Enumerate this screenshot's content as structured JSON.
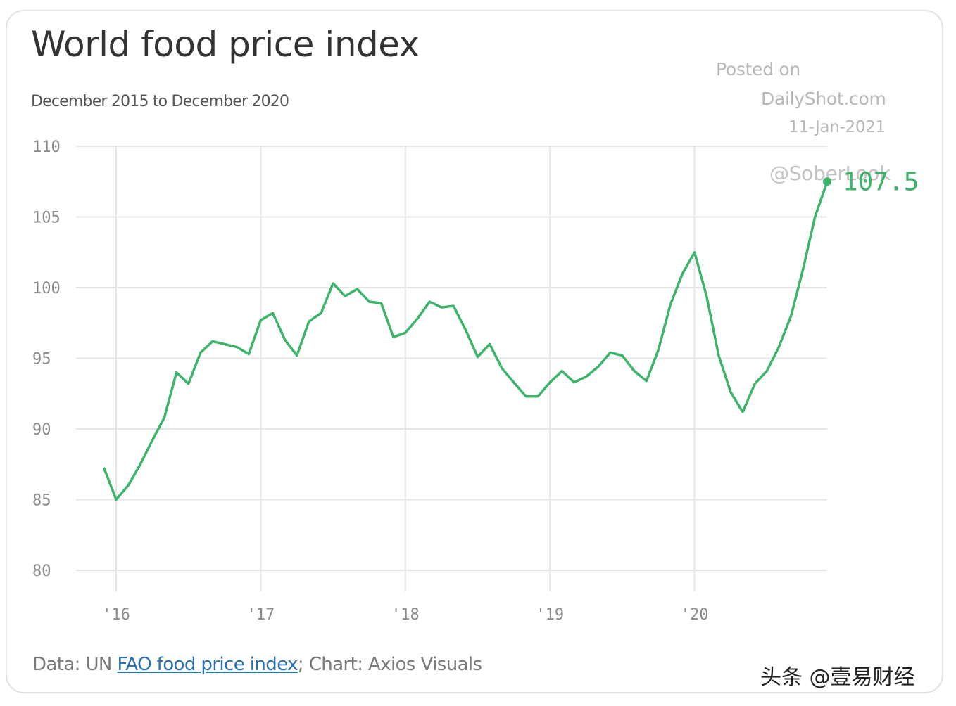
{
  "header": {
    "title": "World food price index",
    "subtitle": "December 2015 to December 2020"
  },
  "watermark": {
    "line1": "Posted on",
    "line2": "DailyShot.com",
    "line3": "11-Jan-2021",
    "line4": "@SoberLook"
  },
  "footer": {
    "prefix": "Data: UN ",
    "link_text": "FAO food price index",
    "suffix": "; Chart: Axios Visuals"
  },
  "brand": "头条 @壹易财经",
  "colors": {
    "line": "#3cb46a",
    "grid": "#e6e6e6",
    "text": "#333333"
  },
  "chart_data": {
    "type": "line",
    "title": "World food price index",
    "subtitle": "December 2015 to December 2020",
    "ylim": [
      80,
      110
    ],
    "yticks": [
      80,
      85,
      90,
      95,
      100,
      105,
      110
    ],
    "xticks": [
      {
        "label": "'16",
        "x": 2016.0
      },
      {
        "label": "'17",
        "x": 2017.0
      },
      {
        "label": "'18",
        "x": 2018.0
      },
      {
        "label": "'19",
        "x": 2019.0
      },
      {
        "label": "'20",
        "x": 2020.0
      }
    ],
    "xlim": [
      2015.917,
      2020.917
    ],
    "grid": true,
    "end_label": "107.5",
    "series": [
      {
        "x": [
          2015.917,
          2016.0,
          2016.083,
          2016.167,
          2016.25,
          2016.333,
          2016.417,
          2016.5,
          2016.583,
          2016.667,
          2016.75,
          2016.833,
          2016.917,
          2017.0,
          2017.083,
          2017.167,
          2017.25,
          2017.333,
          2017.417,
          2017.5,
          2017.583,
          2017.667,
          2017.75,
          2017.833,
          2017.917,
          2018.0,
          2018.083,
          2018.167,
          2018.25,
          2018.333,
          2018.417,
          2018.5,
          2018.583,
          2018.667,
          2018.75,
          2018.833,
          2018.917,
          2019.0,
          2019.083,
          2019.167,
          2019.25,
          2019.333,
          2019.417,
          2019.5,
          2019.583,
          2019.667,
          2019.75,
          2019.833,
          2019.917,
          2020.0,
          2020.083,
          2020.167,
          2020.25,
          2020.333,
          2020.417,
          2020.5,
          2020.583,
          2020.667,
          2020.75,
          2020.833,
          2020.917
        ],
        "values": [
          87.2,
          85.0,
          86.0,
          87.5,
          89.2,
          90.8,
          94.0,
          93.2,
          95.4,
          96.2,
          96.0,
          95.8,
          95.3,
          97.7,
          98.2,
          96.3,
          95.2,
          97.6,
          98.2,
          100.3,
          99.4,
          99.9,
          99.0,
          98.9,
          96.5,
          96.8,
          97.8,
          99.0,
          98.6,
          98.7,
          97.0,
          95.1,
          96.0,
          94.3,
          93.3,
          92.3,
          92.3,
          93.3,
          94.1,
          93.3,
          93.7,
          94.4,
          95.4,
          95.2,
          94.1,
          93.4,
          95.6,
          98.8,
          101.0,
          102.5,
          99.4,
          95.2,
          92.6,
          91.2,
          93.2,
          94.1,
          95.8,
          98.0,
          101.3,
          105.0,
          107.5
        ]
      }
    ]
  }
}
